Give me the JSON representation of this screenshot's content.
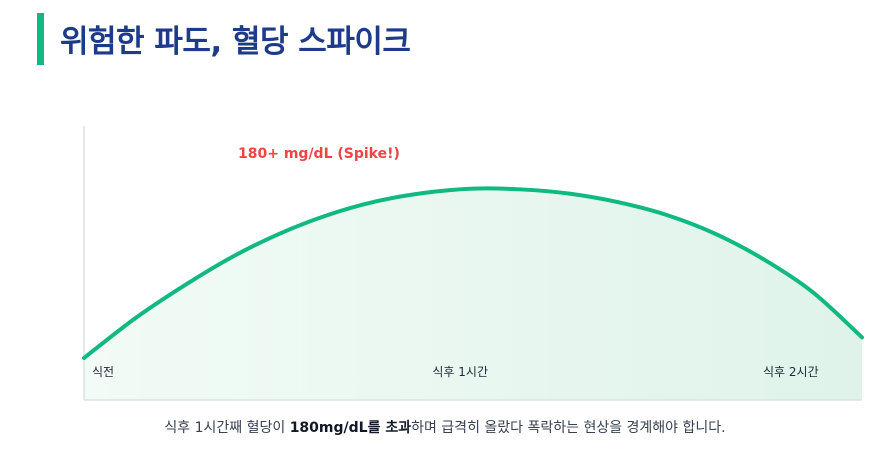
{
  "page": {
    "title": "위험한 파도, 혈당 스파이크"
  },
  "chart_data": {
    "type": "area",
    "x_ticks": [
      "식전",
      "식후 1시간",
      "식후 2시간"
    ],
    "annotation": "180+ mg/dL (Spike!)",
    "series": [
      {
        "x": [
          0,
          0.25,
          0.5,
          0.75,
          1.0,
          1.25,
          1.5,
          1.75,
          2.0,
          2.25,
          2.5,
          2.75,
          3.0,
          3.25,
          3.5,
          3.75,
          4.0
        ],
        "values": [
          0.0,
          0.22,
          0.41,
          0.58,
          0.72,
          0.83,
          0.91,
          0.96,
          0.985,
          0.98,
          0.955,
          0.905,
          0.83,
          0.72,
          0.57,
          0.38,
          0.12
        ]
      }
    ],
    "grid": false,
    "colors": {
      "line": "#10b981",
      "fill": "#e3f5ec",
      "annotation": "#ef4444",
      "axis": "#dbe2ea"
    }
  },
  "caption": {
    "part1": "식후 1시간째 혈당이 ",
    "bold1": "180mg/dL를 초과",
    "part2": "하며 급격히 올랐다 폭락하는 현상을 경계해야 합니다."
  }
}
